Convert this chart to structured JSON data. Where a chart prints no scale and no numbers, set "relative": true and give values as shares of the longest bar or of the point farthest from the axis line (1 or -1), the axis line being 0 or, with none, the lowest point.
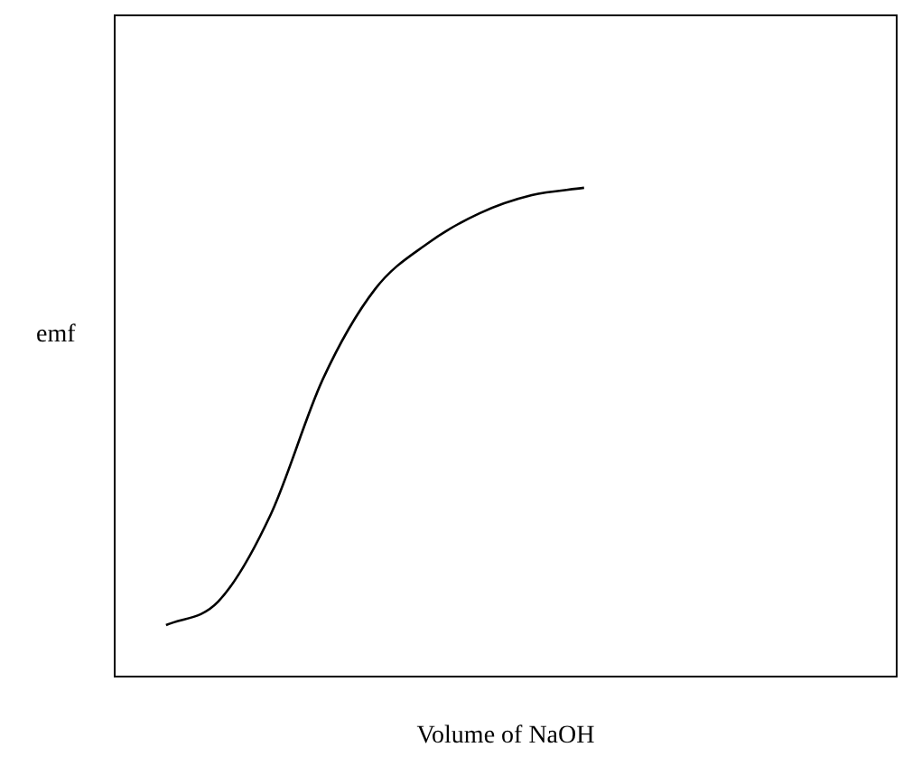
{
  "chart_data": {
    "type": "line",
    "relative": true,
    "xlabel": "Volume of NaOH",
    "ylabel": "emf",
    "tick_labels": false,
    "marker": "none",
    "line_style": "solid",
    "categories": [
      null,
      null,
      null,
      null,
      null,
      null,
      null,
      null,
      null,
      null,
      null,
      null,
      null,
      null,
      null,
      null
    ],
    "series": [
      {
        "color": "#000000",
        "values": [
          null,
          0.107,
          0.155,
          0.332,
          0.609,
          0.793,
          0.886,
          0.948,
          0.985,
          1,
          null,
          null,
          null,
          null,
          null,
          null
        ]
      }
    ]
  }
}
